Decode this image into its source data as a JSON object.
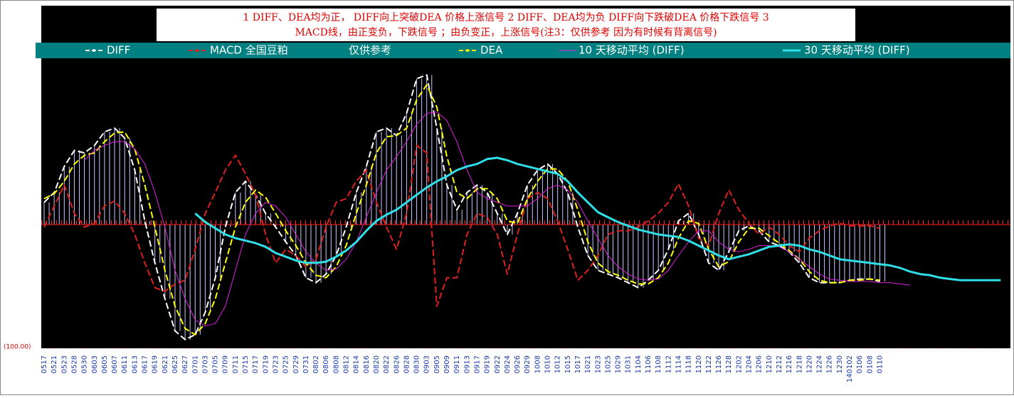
{
  "chart_data": {
    "type": "line",
    "title": "1 DIFF、DEA均为正，   DIFF向上突破DEA    价格上涨信号 2 DIFF、DEA均为负   DIFF向下跌破DEA  价格下跌信号  3",
    "subtitle": "MACD线，由正变负，下跌信号 ；由负变正，上涨信号(注3：仅供参考 因为有时候有背离信号)",
    "legend_note": "仅供参考",
    "categories": [
      "0517",
      "0521",
      "0523",
      "0528",
      "0530",
      "0603",
      "0605",
      "0607",
      "0611",
      "0613",
      "0617",
      "0619",
      "0621",
      "0625",
      "0627",
      "0701",
      "0703",
      "0705",
      "0709",
      "0711",
      "0715",
      "0717",
      "0719",
      "0723",
      "0725",
      "0729",
      "0731",
      "0802",
      "0806",
      "0808",
      "0812",
      "0814",
      "0816",
      "0820",
      "0822",
      "0826",
      "0828",
      "0830",
      "0903",
      "0905",
      "0909",
      "0911",
      "0913",
      "0917",
      "0919",
      "0922",
      "0924",
      "0926",
      "0929",
      "1008",
      "1010",
      "1012",
      "1015",
      "1017",
      "1021",
      "1023",
      "1025",
      "1029",
      "1031",
      "1104",
      "1106",
      "1108",
      "1112",
      "1114",
      "1118",
      "1120",
      "1122",
      "1126",
      "1128",
      "1202",
      "1204",
      "1206",
      "1210",
      "1212",
      "1216",
      "1218",
      "1220",
      "1224",
      "1226",
      "1230",
      "140102",
      "0106",
      "0108",
      "0110",
      null,
      null,
      null,
      null,
      null,
      null,
      null,
      null,
      null,
      null,
      null,
      null
    ],
    "ylim": [
      -100,
      177
    ],
    "yticks": [
      {
        "value": -100,
        "label": "(100.00)"
      }
    ],
    "histogram_series": 0,
    "histogram_color": "#c8c8ff",
    "series": [
      {
        "name": "DIFF",
        "color": "#ffffff",
        "dashed": true,
        "width": 2,
        "values": [
          18,
          26,
          47,
          60,
          58,
          64,
          75,
          78,
          70,
          44,
          3,
          -31,
          -60,
          -86,
          -93,
          -89,
          -71,
          -43,
          -2,
          26,
          35,
          24,
          9,
          -2,
          -14,
          -25,
          -43,
          -47,
          -40,
          -25,
          -2,
          26,
          47,
          75,
          78,
          72,
          90,
          118,
          121,
          78,
          32,
          12,
          26,
          32,
          26,
          9,
          -8,
          9,
          32,
          44,
          49,
          41,
          26,
          -2,
          -25,
          -37,
          -40,
          -43,
          -47,
          -51,
          -45,
          -37,
          -20,
          3,
          9,
          -8,
          -31,
          -37,
          -22,
          -5,
          -1,
          -5,
          -14,
          -17,
          -22,
          -31,
          -43,
          -47,
          -47,
          -47,
          -45,
          -44,
          -44,
          -46,
          null,
          null,
          null,
          null,
          null,
          null,
          null,
          null,
          null,
          null,
          null,
          null
        ]
      },
      {
        "name": "MACD 全国豆粕",
        "color": "#e02020",
        "dashed": true,
        "width": 2,
        "values": [
          -2,
          15,
          32,
          9,
          -2,
          1,
          15,
          19,
          9,
          -8,
          -31,
          -51,
          -54,
          -48,
          -45,
          -20,
          9,
          26,
          44,
          56,
          41,
          24,
          -8,
          -31,
          -20,
          -25,
          -34,
          -28,
          -2,
          18,
          21,
          35,
          44,
          18,
          -2,
          -20,
          9,
          64,
          58,
          -66,
          -43,
          -43,
          -8,
          9,
          6,
          -8,
          -40,
          -8,
          21,
          26,
          21,
          3,
          -20,
          -45,
          -37,
          -25,
          -8,
          -5,
          -5,
          -2,
          3,
          9,
          18,
          33,
          15,
          -11,
          -17,
          9,
          28,
          12,
          1,
          -8,
          -2,
          -8,
          -17,
          -22,
          -11,
          -5,
          -1,
          1,
          -1,
          -1,
          -1,
          -3,
          null,
          null,
          null,
          null,
          null,
          null,
          null,
          null,
          null,
          null,
          null,
          null
        ]
      },
      {
        "name": "DEA",
        "color": "#ffff00",
        "dashed": true,
        "width": 2,
        "values": [
          21,
          25,
          35,
          49,
          56,
          58,
          67,
          74,
          75,
          61,
          32,
          -2,
          -37,
          -66,
          -84,
          -89,
          -80,
          -60,
          -31,
          -2,
          18,
          28,
          22,
          9,
          -5,
          -17,
          -31,
          -41,
          -43,
          -34,
          -17,
          9,
          32,
          58,
          71,
          72,
          78,
          101,
          113,
          95,
          55,
          26,
          21,
          29,
          29,
          21,
          3,
          1,
          21,
          35,
          45,
          45,
          35,
          12,
          -14,
          -31,
          -38,
          -41,
          -45,
          -48,
          -48,
          -43,
          -31,
          -11,
          3,
          1,
          -20,
          -34,
          -30,
          -14,
          -3,
          -3,
          -9,
          -15,
          -21,
          -28,
          -38,
          -45,
          -47,
          -47,
          -45,
          -45,
          -44,
          -45,
          null,
          null,
          null,
          null,
          null,
          null,
          null,
          null,
          null,
          null,
          null,
          null
        ]
      },
      {
        "name": "10 天移动平均 (DIFF)",
        "color": "#e020e0",
        "dashed": false,
        "width": 1,
        "values": [
          null,
          null,
          null,
          null,
          52,
          60,
          64,
          67,
          67,
          61,
          49,
          26,
          -2,
          -37,
          -60,
          -77,
          -82,
          -80,
          -66,
          -37,
          -8,
          9,
          18,
          15,
          6,
          -8,
          -22,
          -31,
          -37,
          -36,
          -28,
          -14,
          6,
          26,
          44,
          55,
          67,
          81,
          90,
          91,
          84,
          67,
          44,
          26,
          21,
          18,
          15,
          15,
          15,
          21,
          29,
          32,
          28,
          18,
          3,
          -11,
          -25,
          -34,
          -40,
          -44,
          -45,
          -44,
          -37,
          -25,
          -14,
          -5,
          -5,
          -14,
          -20,
          -22,
          -20,
          -17,
          -17,
          -18,
          -22,
          -28,
          -34,
          -40,
          -44,
          -45,
          -46,
          -46,
          -46,
          -47,
          -47,
          -48,
          -49,
          null,
          null,
          null,
          null,
          null,
          null,
          null,
          null,
          null
        ]
      },
      {
        "name": "30 天移动平均 (DIFF)",
        "color": "#30e0e8",
        "dashed": false,
        "width": 3,
        "values": [
          null,
          null,
          null,
          null,
          null,
          null,
          null,
          null,
          null,
          null,
          null,
          null,
          null,
          null,
          null,
          9,
          2,
          -3,
          -8,
          -11,
          -13,
          -15,
          -18,
          -23,
          -26,
          -29,
          -31,
          -31,
          -30,
          -26,
          -21,
          -14,
          -5,
          3,
          8,
          12,
          18,
          24,
          30,
          35,
          39,
          44,
          47,
          49,
          53,
          54,
          52,
          49,
          47,
          45,
          43,
          41,
          35,
          26,
          18,
          10,
          6,
          2,
          -1,
          -4,
          -6,
          -8,
          -9,
          -10,
          -13,
          -17,
          -21,
          -25,
          -28,
          -26,
          -24,
          -21,
          -18,
          -17,
          -16,
          -17,
          -20,
          -22,
          -25,
          -28,
          -29,
          -30,
          -31,
          -32,
          -33,
          -35,
          -38,
          -40,
          -41,
          -43,
          -44,
          -45,
          -45,
          -45,
          -45,
          -45
        ]
      }
    ]
  }
}
